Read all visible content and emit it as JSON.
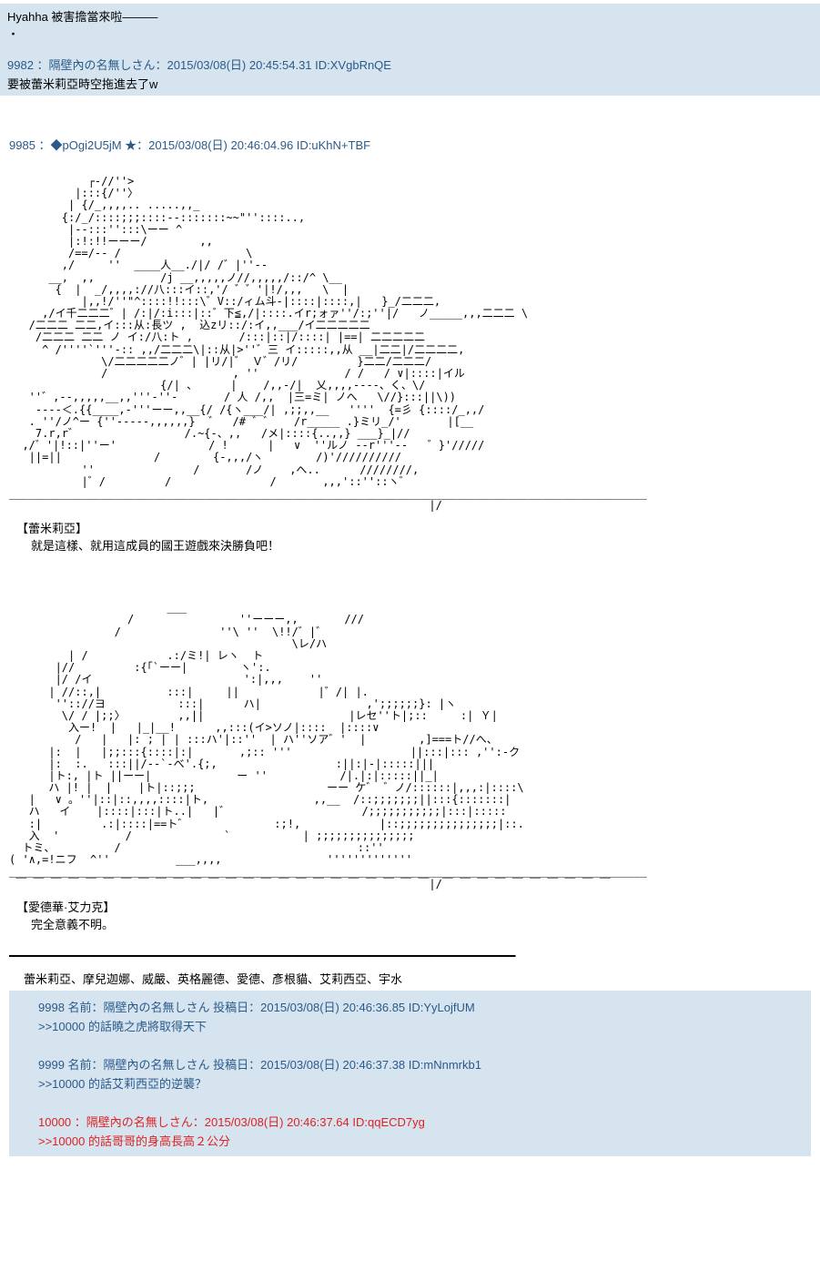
{
  "top_quote": {
    "line1": "Hyahha 被害擔當來啦———",
    "line2": "・",
    "post9982_header": "9982 ：隔壁內の名無しさん：2015/03/08(日) 20:45:54.31 ID:XVgbRnQE",
    "post9982_body": "要被蕾米莉亞時空拖進去了w"
  },
  "main_post": {
    "header": "9985 ：◆pOgi2U5jM ★：2015/03/08(日) 20:46:04.96 ID:uKhN+TBF",
    "aa1": "            ┌‐//''>\n          |:::{/''〉\n         | {/_,,,,.. .....,,_\n        {:/_/::::;;;::::-‐:::::::~~\"''::::..,\n         |--:::'':::\\ーー ^\n         |:!:!!ーーー/        ,,\n         /==/-- /                   \\\n        ,/     ''  ____人__./|/ /゛|''--\n      __,  ,,          /j __,,,,,ノ//,,,,,/::/^ \\__\n       {  |  _/,,,,://八:::イ::,'/ ゛゛'|!/,,,   \\  |\n           |,,!/''\"^::::!!:::\\゛V::/ィム斗-|::::|::::,|   }_/二二二,\n     ,/イ千二二二゛| /:|/:i:::|::゛下≦,/|::::.イr;ォァ''/:;''|/   ノ_____,,,二二二 \\\n   /二二二 二二,イ:::从:長ツ ,  込zリ::/:イ,,___/イ二二二二二\n    /二二二 二二 ノ イ:/八:ト ,       /:::|::|/::::| |==| 二二二二二\n     ^ /''''`'''-:: ,,/二二二\\|::从|>''゛三 イ:::::,,从 __|二二|/二二二二,\n              \\/二二二二二ノ゛| |リ/|゛ Ｖ゛/リ/         }二二/二二二/\n              /                   , ''             / /   / ∨|::::|イル\n                       {/| 、     |    /,,-/|  乂,,,,----、く、\\/\n   ''゛,--,,,,,__,,'''-''-       / 人 /,,  |三=ミ| ノへ   \\//}:::||\\))\n    ----＜.{{____,-'''ーー,,__{/ /{ヽ___/| ,;;,,__   ''''  {=彡 {::::/_,,/\n   . ''/ノ^ー {''-----,,,,,,}  ゛  /# ゛゛   /r_____ .}ミリ_/'       |[__\n    7.r,r゛                /.~{-、,,   /メ|::::{..,,} ___}_|//\n  ,/゛'|!::|''ー'              / !      |   ∨  ''ルノ --r'''--   ゛}'/////\n   ||=||              /        {-,,,/ヽ        /)'//////////\n           ''               /       /ノ    ,へ..      ////////,\n           |゛/         /               /       ,,,'::''::ヽ゛\n_________________________________________________________________________________________________\n ￣ ￣ ￣ ￣ ￣ ￣ ￣ ￣ ￣ ￣ ￣ ￣ ￣ ￣ ￣ ￣ ￣ ￣ ￣ ￣ ￣ ￣ ￣ ￣|/￣ ￣ ￣ ￣ ￣ ￣ ￣ ￣ ￣ ￣",
    "speaker1": "【蕾米莉亞】",
    "dialogue1": "就是這樣、就用這成員的國王遊戲來決勝負吧！",
    "aa2": "                        ___\n                  /                ''ーーー,,       ///\n                /               ''\\ ''  \\!!/゛|゛\n                                           \\レ/ハ\n         | /            .:/ミ!| レヽ  ト\n       |//         :{「`ーー|        ヽ':.\n       |/ /イ                       ':|,,,    ''\n      | //::,|          :::|     ||            |゛/| |.\n       '':://ヨ           :::|      ハ|                ,';;;;;;}: |ヽ\n        \\/ / |;;〉        ,,||                      |レセ''ト|;::     :| Ｙ|\n         入ー!  |   |_|__!      ,,:::(イ>ソノ|::::  |::::∨\n          /   |   |: ; | | :::ハ'|::''  | ハ''ソア゛'  |        ,]===ト//へ、\n      |:  |   |;;:::{::::|:|       ,;:: '''                  ||:::|::: ,'':-ク\n      |:  :.   :::||/--`-べ'.{;,                  :||:|-|:::::|||\n      |ト:, |ト ||ーー|             ー ''           /|.|:|:::::||_|\n      ハ |! |  |    |ト|::;;;                    ーー ケ゛ ゛ノ/::::::|,,,:|::::\\\n   |   ∨ 。''|::|::,,,,::::|ト,                ,,__  /::;;;;;;;||:::{:::::::|\n   ハ   イ    |::::|:::|ト..|   |゛                    /;;;;;;;;;;;|:::|:::::\n   :|         .:|::::|==ト゛             :;!,            |::;;;;;;;;;;;;;;;|::.\n   入  '          /              `           | ;;;;;;;;;;;;;;;\n  トミ、         /                                    ::''\n( '∧,=!ニフ  ^''          ___,,,,                '''''''''''''\n_________________________________________________________________________________________________\n ￣ ￣ ￣ ￣ ￣ ￣ ￣ ￣ ￣ ￣ ￣ ￣ ￣ ￣ ￣ ￣ ￣ ￣ ￣ ￣ ￣ ￣ ￣ ￣|/￣ ￣ ￣ ￣ ￣ ￣ ￣ ￣ ￣ ￣",
    "speaker2": "【愛德華·艾力克】",
    "dialogue2": "完全意義不明。",
    "names": "蕾米莉亞、摩兒迦娜、威嚴、英格麗德、愛德、彥根貓、艾莉西亞、宇水"
  },
  "nested": {
    "post9998_header": "9998 名前：隔壁內の名無しさん 投稿日：2015/03/08(日) 20:46:36.85 ID:YyLojfUM",
    "post9998_body": ">>10000 的話曉之虎將取得天下",
    "post9999_header": "9999 名前：隔壁內の名無しさん 投稿日：2015/03/08(日) 20:46:37.38 ID:mNnmrkb1",
    "post9999_body": ">>10000 的話艾莉西亞的逆襲？",
    "post10000_header": "10000 ：隔壁內の名無しさん：2015/03/08(日) 20:46:37.64 ID:qqECD7yg",
    "post10000_body": ">>10000 的話哥哥的身高長高２公分"
  }
}
